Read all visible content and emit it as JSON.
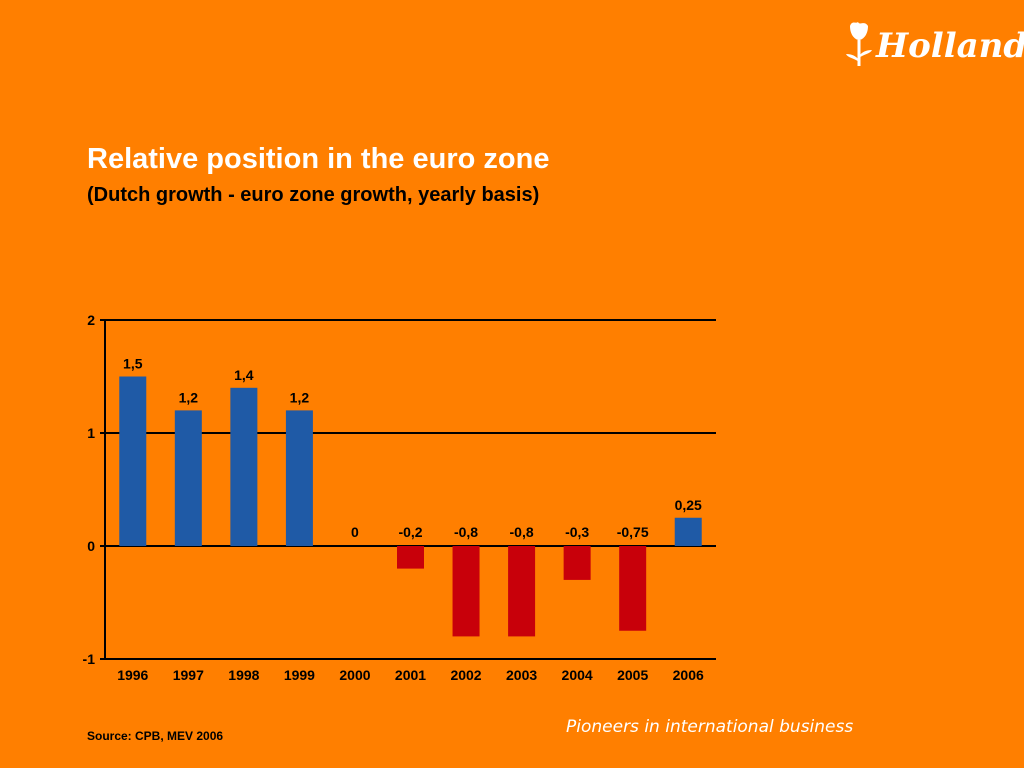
{
  "brand": {
    "logo_text": "Holland",
    "logo_icon": "tulip-icon"
  },
  "slide": {
    "title": "Relative position in the euro zone",
    "subtitle": "(Dutch growth -  euro zone growth, yearly basis)",
    "source": "Source: CPB, MEV 2006",
    "tagline": "Pioneers in international business"
  },
  "chart_data": {
    "type": "bar",
    "title": "",
    "xlabel": "",
    "ylabel": "",
    "categories": [
      "1996",
      "1997",
      "1998",
      "1999",
      "2000",
      "2001",
      "2002",
      "2003",
      "2004",
      "2005",
      "2006"
    ],
    "values": [
      1.5,
      1.2,
      1.4,
      1.2,
      0,
      -0.2,
      -0.8,
      -0.8,
      -0.3,
      -0.75,
      0.25
    ],
    "value_labels": [
      "1,5",
      "1,2",
      "1,4",
      "1,2",
      "0",
      "-0,2",
      "-0,8",
      "-0,8",
      "-0,3",
      "-0,75",
      "0,25"
    ],
    "ylim": [
      -1,
      2
    ],
    "yticks": [
      2,
      1,
      0,
      -1
    ],
    "ytick_labels": [
      "2",
      "1",
      "0",
      "-1"
    ],
    "grid": true,
    "legend": "none",
    "colors": {
      "positive": "#1F5AA6",
      "negative": "#C8000A",
      "background": "#FF7F00",
      "axis": "#000000"
    }
  }
}
